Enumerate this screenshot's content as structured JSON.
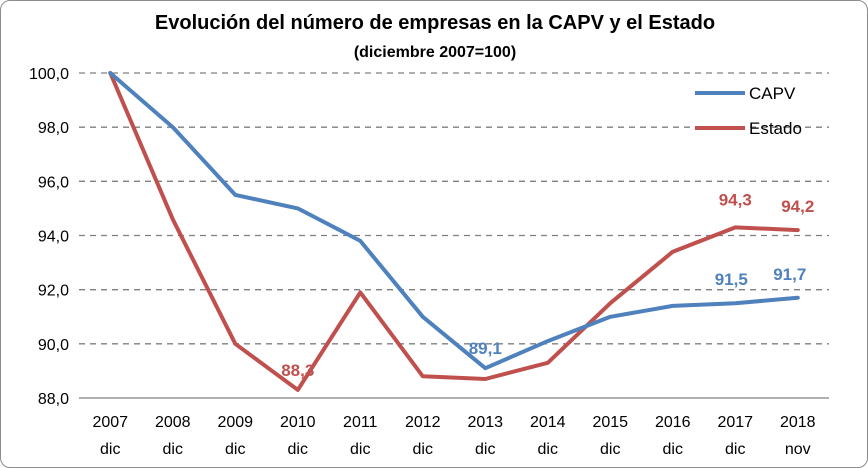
{
  "chart_data": {
    "type": "line",
    "title": "Evolución del número de empresas en la CAPV y el Estado",
    "subtitle": "(diciembre 2007=100)",
    "categories": [
      [
        "2007",
        "dic"
      ],
      [
        "2008",
        "dic"
      ],
      [
        "2009",
        "dic"
      ],
      [
        "2010",
        "dic"
      ],
      [
        "2011",
        "dic"
      ],
      [
        "2012",
        "dic"
      ],
      [
        "2013",
        "dic"
      ],
      [
        "2014",
        "dic"
      ],
      [
        "2015",
        "dic"
      ],
      [
        "2016",
        "dic"
      ],
      [
        "2017",
        "dic"
      ],
      [
        "2018",
        "nov"
      ]
    ],
    "ylim": [
      88.0,
      100.0
    ],
    "yticks": [
      "100,0",
      "98,0",
      "96,0",
      "94,0",
      "92,0",
      "90,0",
      "88,0"
    ],
    "ytick_values": [
      100,
      98,
      96,
      94,
      92,
      90,
      88
    ],
    "grid": "horizontal dashed",
    "legend_position": "top-right",
    "series": [
      {
        "name": "CAPV",
        "color": "#4f81bd",
        "values": [
          100.0,
          98.0,
          95.5,
          95.0,
          93.8,
          91.0,
          89.1,
          90.1,
          91.0,
          91.4,
          91.5,
          91.7
        ]
      },
      {
        "name": "Estado",
        "color": "#c0504d",
        "values": [
          100.0,
          94.6,
          90.0,
          88.3,
          91.9,
          88.8,
          88.7,
          89.3,
          91.5,
          93.4,
          94.3,
          94.2
        ]
      }
    ],
    "data_labels": [
      {
        "series": 1,
        "index": 3,
        "text": "88,3"
      },
      {
        "series": 0,
        "index": 6,
        "text": "89,1"
      },
      {
        "series": 0,
        "index": 10,
        "text": "91,5"
      },
      {
        "series": 0,
        "index": 11,
        "text": "91,7"
      },
      {
        "series": 1,
        "index": 10,
        "text": "94,3"
      },
      {
        "series": 1,
        "index": 11,
        "text": "94,2"
      }
    ]
  }
}
